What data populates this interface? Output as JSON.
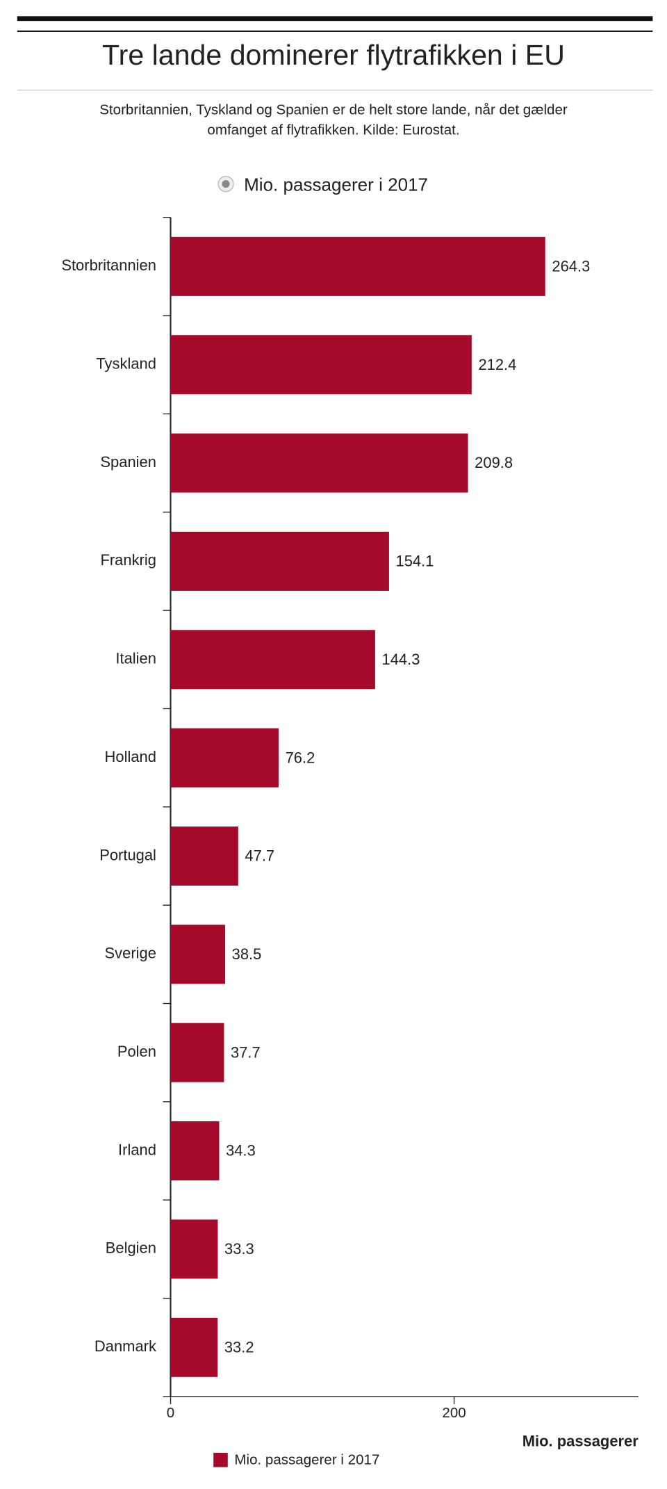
{
  "chart_data": {
    "type": "bar",
    "orientation": "horizontal",
    "title": "Tre lande dominerer flytrafikken i EU",
    "subtitle": [
      "Storbritannien, Tyskland og Spanien er de helt store lande, når det gælder",
      "omfanget af flytrafikken. Kilde: Eurostat."
    ],
    "categories": [
      "Storbritannien",
      "Tyskland",
      "Spanien",
      "Frankrig",
      "Italien",
      "Holland",
      "Portugal",
      "Sverige",
      "Polen",
      "Irland",
      "Belgien",
      "Danmark"
    ],
    "series": [
      {
        "name": "Mio. passagerer i 2017",
        "color": "#a50a2a",
        "values": [
          264.3,
          212.4,
          209.8,
          154.1,
          144.3,
          76.2,
          47.7,
          38.5,
          37.7,
          34.3,
          33.3,
          33.2
        ]
      }
    ],
    "x_label": "Mio. passagerer",
    "xlim": [
      0,
      330
    ],
    "xticks": [
      0,
      200
    ]
  }
}
